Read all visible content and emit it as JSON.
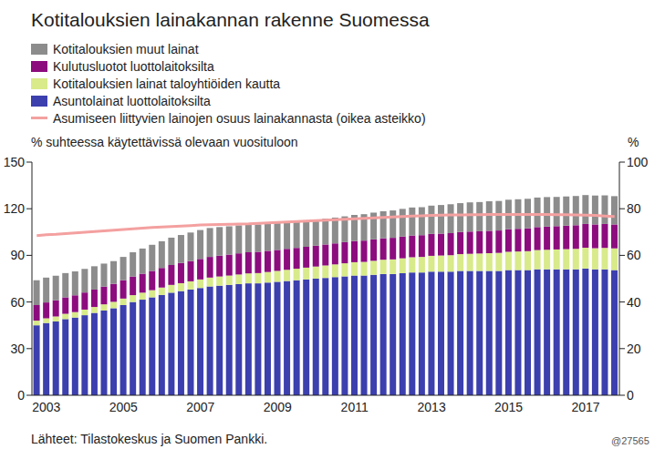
{
  "chart_data": {
    "type": "bar",
    "stacked": true,
    "title": "Kotitalouksien lainakannan rakenne Suomessa",
    "ylabel": "% suhteessa käytettävissä olevaan vuosituloon",
    "y2label": "%",
    "source": "Lähteet: Tilastokeskus ja Suomen Pankki.",
    "note": "@27565",
    "categories": [
      null,
      "2003",
      null,
      null,
      null,
      null,
      null,
      null,
      null,
      "2005",
      null,
      null,
      null,
      null,
      null,
      null,
      null,
      "2007",
      null,
      null,
      null,
      null,
      null,
      null,
      null,
      "2009",
      null,
      null,
      null,
      null,
      null,
      null,
      null,
      "2011",
      null,
      null,
      null,
      null,
      null,
      null,
      null,
      "2013",
      null,
      null,
      null,
      null,
      null,
      null,
      null,
      "2015",
      null,
      null,
      null,
      null,
      null,
      null,
      null,
      "2017",
      null,
      null,
      null
    ],
    "ylim": [
      0,
      150
    ],
    "yticks": [
      0,
      30,
      60,
      90,
      120,
      150
    ],
    "y2lim": [
      0,
      100
    ],
    "y2ticks": [
      0,
      20,
      40,
      60,
      80,
      100
    ],
    "grid": false,
    "series": [
      {
        "name": "Asuntolainat luottolaitoksilta",
        "type": "bar",
        "color": "#3c3fae",
        "values": [
          45,
          46.5,
          47.5,
          49,
          50,
          51.5,
          53,
          54.5,
          56,
          58,
          60,
          61.5,
          63,
          64.5,
          66,
          67,
          68,
          69,
          70,
          70.5,
          71,
          71.5,
          72,
          72,
          72.5,
          73,
          73.5,
          74,
          74.5,
          75,
          75.5,
          76,
          76.5,
          77,
          77,
          77.5,
          78,
          78,
          78.5,
          79,
          79,
          79.5,
          79.5,
          79.5,
          80,
          80,
          80,
          80,
          80,
          80.5,
          80.5,
          80.5,
          81,
          81,
          81,
          81,
          81,
          81.5,
          81,
          81,
          80.5
        ]
      },
      {
        "name": "Kotitalouksien lainat taloyhtiöiden kautta",
        "type": "bar",
        "color": "#d8ea8a",
        "values": [
          3,
          3,
          3.2,
          3.4,
          3.5,
          3.6,
          3.8,
          4,
          4.1,
          4.2,
          4.4,
          4.5,
          4.6,
          4.8,
          5,
          5.1,
          5.3,
          5.5,
          5.7,
          5.9,
          6,
          6.2,
          6.4,
          6.6,
          6.8,
          7,
          7.2,
          7.4,
          7.6,
          7.8,
          8,
          8.2,
          8.4,
          8.6,
          8.8,
          9,
          9.2,
          9.4,
          9.6,
          9.8,
          10,
          10.2,
          10.4,
          10.6,
          10.8,
          11,
          11.2,
          11.4,
          11.6,
          11.8,
          12,
          12.2,
          12.4,
          12.6,
          12.8,
          13,
          13.2,
          13.4,
          13.6,
          13.8,
          14
        ]
      },
      {
        "name": "Kulutusluotot luottolaitoksilta",
        "type": "bar",
        "color": "#8c0c7e",
        "values": [
          10,
          10.2,
          10.4,
          10.6,
          10.8,
          11,
          11.2,
          11.4,
          11.6,
          11.8,
          12,
          12.2,
          12.4,
          12.6,
          12.8,
          13,
          13,
          13.2,
          13.3,
          13.4,
          13.5,
          13.6,
          13.6,
          13.7,
          13.6,
          13.5,
          13.5,
          13.4,
          13.4,
          13.4,
          13.5,
          13.5,
          13.6,
          13.6,
          13.7,
          13.8,
          13.8,
          13.9,
          14,
          14,
          14,
          14.1,
          14.1,
          14.2,
          14.2,
          14.3,
          14.3,
          14.4,
          14.4,
          14.5,
          14.6,
          14.7,
          14.8,
          14.9,
          15,
          15.1,
          15.2,
          15.3,
          15.3,
          15.4,
          15.4
        ]
      },
      {
        "name": "Kotitalouksien muut lainat",
        "type": "bar",
        "color": "#8c8c8c",
        "values": [
          16,
          16,
          15.8,
          15.6,
          15.4,
          15.2,
          15,
          14.8,
          14.6,
          15,
          15.6,
          16.2,
          16.8,
          17.2,
          17.6,
          18,
          18.4,
          18.6,
          18.6,
          18.4,
          18.2,
          18,
          17.8,
          17.6,
          17.4,
          17.2,
          17,
          17,
          16.8,
          16.8,
          16.6,
          16.6,
          16.6,
          16.8,
          17,
          17.2,
          17.4,
          17.6,
          17.8,
          18,
          18,
          18.2,
          18.4,
          18.6,
          18.6,
          18.8,
          18.8,
          19,
          19,
          19,
          19,
          19,
          19,
          19,
          18.8,
          18.8,
          18.8,
          18.6,
          18.6,
          18.4,
          18.2
        ]
      },
      {
        "name": "Asumiseen liittyvien lainojen osuus lainakannasta (oikea asteikko)",
        "type": "line",
        "axis": "y2",
        "color": "#f4a0a0",
        "values": [
          68.5,
          68.8,
          69,
          69.3,
          69.6,
          69.9,
          70.2,
          70.5,
          70.8,
          71.1,
          71.4,
          71.7,
          72,
          72.2,
          72.4,
          72.6,
          72.8,
          73,
          73.1,
          73.2,
          73.3,
          73.4,
          73.5,
          73.7,
          73.9,
          74.1,
          74.3,
          74.5,
          74.7,
          74.9,
          75.1,
          75.3,
          75.5,
          75.7,
          75.9,
          76.1,
          76.3,
          76.5,
          76.7,
          76.9,
          77,
          77.1,
          77.2,
          77.3,
          77.3,
          77.4,
          77.4,
          77.5,
          77.5,
          77.5,
          77.5,
          77.5,
          77.5,
          77.5,
          77.4,
          77.4,
          77.3,
          77.2,
          77.1,
          76.9,
          76.7
        ]
      }
    ]
  }
}
